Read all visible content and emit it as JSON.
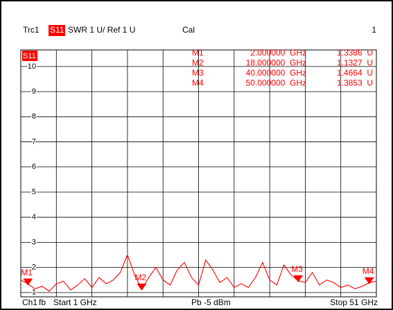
{
  "header": {
    "trace": "Trc1",
    "param": "S11",
    "format": "SWR 1 U/ Ref 1 U",
    "cal": "Cal",
    "channel_num": "1"
  },
  "footer": {
    "channel": "Ch1",
    "fb": "fb",
    "start": "Start 1 GHz",
    "power": "Pb -5 dBm",
    "stop": "Stop 51 GHz"
  },
  "chart_data": {
    "type": "line",
    "trace_label": "S11",
    "x": [
      1,
      2,
      3,
      4,
      5,
      6,
      7,
      8,
      9,
      10,
      11,
      12,
      13,
      14,
      15,
      16,
      17,
      18,
      19,
      20,
      21,
      22,
      23,
      24,
      25,
      26,
      27,
      28,
      29,
      30,
      31,
      32,
      33,
      34,
      35,
      36,
      37,
      38,
      39,
      40,
      41,
      42,
      43,
      44,
      45,
      46,
      47,
      48,
      49,
      50,
      51
    ],
    "series": [
      {
        "color": "#ff0000",
        "values": [
          1.5,
          1.34,
          1.15,
          1.25,
          1.05,
          1.35,
          1.45,
          1.1,
          1.3,
          1.55,
          1.2,
          1.6,
          1.35,
          1.5,
          1.8,
          2.5,
          1.7,
          1.13,
          1.6,
          2.0,
          1.5,
          1.3,
          1.9,
          2.2,
          1.6,
          1.3,
          2.3,
          1.9,
          1.4,
          1.6,
          1.2,
          1.35,
          1.2,
          1.6,
          2.2,
          1.5,
          1.3,
          2.1,
          1.7,
          1.47,
          1.4,
          1.8,
          1.3,
          1.5,
          1.4,
          1.2,
          1.3,
          1.15,
          1.25,
          1.39,
          1.45
        ]
      }
    ],
    "xlim": [
      1,
      51
    ],
    "xticks": [
      1,
      6,
      11,
      16,
      21,
      26,
      31,
      36,
      41,
      46,
      51
    ],
    "ylim": [
      0.83,
      10.66
    ],
    "yticks": [
      1,
      2,
      3,
      4,
      5,
      6,
      7,
      8,
      9,
      10
    ],
    "grid": true,
    "markers": [
      {
        "name": "M1",
        "x": 2,
        "x_label": "2.000000  GHz",
        "y": 1.3386,
        "y_label": "1.3386  U"
      },
      {
        "name": "M2",
        "x": 18,
        "x_label": "18.000000  GHz",
        "y": 1.1327,
        "y_label": "1.1327  U"
      },
      {
        "name": "M3",
        "x": 40,
        "x_label": "40.000000  GHz",
        "y": 1.4664,
        "y_label": "1.4664  U"
      },
      {
        "name": "M4",
        "x": 50,
        "x_label": "50.000000  GHz",
        "y": 1.3853,
        "y_label": "1.3853  U"
      }
    ]
  }
}
